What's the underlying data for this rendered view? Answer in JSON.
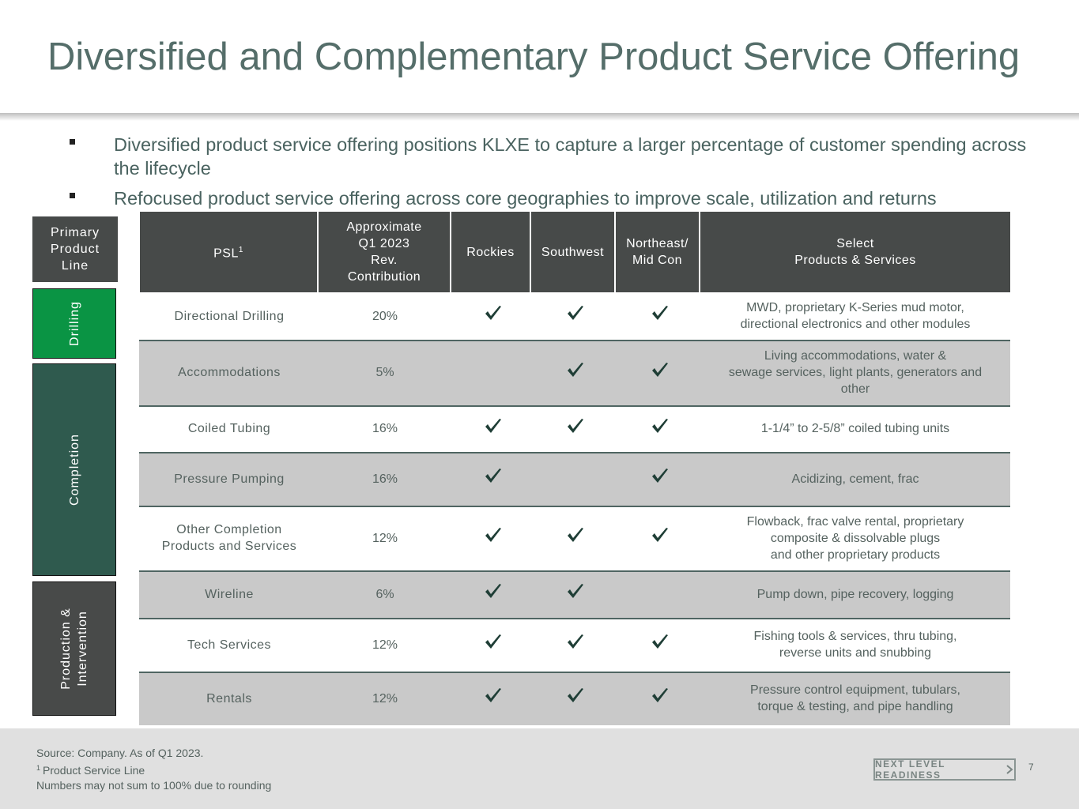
{
  "header": {
    "title": "Diversified and Complementary Product Service Offering"
  },
  "bullets": [
    "Diversified product service offering positions KLXE to capture a larger percentage of customer spending across the lifecycle",
    "Refocused product service offering across core geographies to improve scale, utilization and returns"
  ],
  "groups": {
    "header": "Primary\nProduct\nLine",
    "items": [
      "Drilling",
      "Completion",
      "Production &\nIntervention"
    ]
  },
  "table": {
    "columns": [
      {
        "text": "PSL",
        "sup": "1"
      },
      {
        "text": "Approximate\nQ1 2023\nRev.\nContribution"
      },
      {
        "text": "Rockies"
      },
      {
        "text": "Southwest"
      },
      {
        "text": "Northeast/\nMid Con"
      },
      {
        "text": "Select\nProducts & Services"
      }
    ],
    "rows": [
      {
        "psl": "Directional Drilling",
        "rev": "20%",
        "checks": [
          true,
          true,
          true
        ],
        "products": "MWD, proprietary K-Series mud motor,\ndirectional electronics and other modules"
      },
      {
        "psl": "Accommodations",
        "rev": "5%",
        "checks": [
          false,
          true,
          true
        ],
        "products": "Living accommodations, water &\nsewage services, light plants, generators and\nother"
      },
      {
        "psl": "Coiled Tubing",
        "rev": "16%",
        "checks": [
          true,
          true,
          true
        ],
        "products": "1-1/4” to 2-5/8” coiled tubing units"
      },
      {
        "psl": "Pressure Pumping",
        "rev": "16%",
        "checks": [
          true,
          false,
          true
        ],
        "products": "Acidizing, cement, frac"
      },
      {
        "psl": "Other Completion\nProducts and Services",
        "rev": "12%",
        "checks": [
          true,
          true,
          true
        ],
        "products": "Flowback, frac valve rental, proprietary\ncomposite & dissolvable plugs\nand other proprietary products"
      },
      {
        "psl": "Wireline",
        "rev": "6%",
        "checks": [
          true,
          true,
          false
        ],
        "products": "Pump down, pipe recovery, logging"
      },
      {
        "psl": "Tech Services",
        "rev": "12%",
        "checks": [
          true,
          true,
          true
        ],
        "products": "Fishing tools & services, thru tubing,\nreverse units and snubbing"
      },
      {
        "psl": "Rentals",
        "rev": "12%",
        "checks": [
          true,
          true,
          true
        ],
        "products": "Pressure control equipment, tubulars,\ntorque & testing, and pipe handling"
      }
    ]
  },
  "footer": {
    "source": "Source: Company. As of Q1 2023.",
    "footnote_mark": "1",
    "footnote": "Product Service Line",
    "note": "Numbers may not sum to 100% due to rounding",
    "logo": "NEXT LEVEL READINESS",
    "page": "7"
  }
}
